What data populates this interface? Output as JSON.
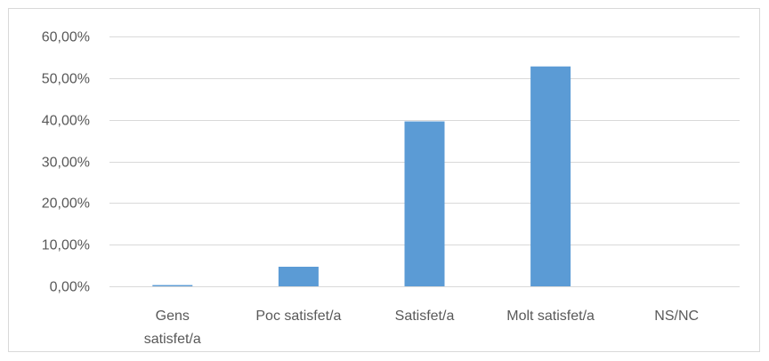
{
  "chart_data": {
    "type": "bar",
    "categories": [
      [
        "Gens",
        "satisfet/a"
      ],
      [
        "Poc satisfet/a"
      ],
      [
        "Satisfet/a"
      ],
      [
        "Molt satisfet/a"
      ],
      [
        "NS/NC"
      ]
    ],
    "values": [
      0.003,
      0.047,
      0.396,
      0.528,
      0
    ],
    "ylim": [
      0,
      0.6
    ],
    "yticks": [
      0,
      0.1,
      0.2,
      0.3,
      0.4,
      0.5,
      0.6
    ],
    "ytick_labels": [
      "0,00%",
      "10,00%",
      "20,00%",
      "30,00%",
      "40,00%",
      "50,00%",
      "60,00%"
    ],
    "grid": true,
    "legend": "none",
    "bar_color": "#5b9bd5",
    "grid_color": "#d9d9d9"
  }
}
